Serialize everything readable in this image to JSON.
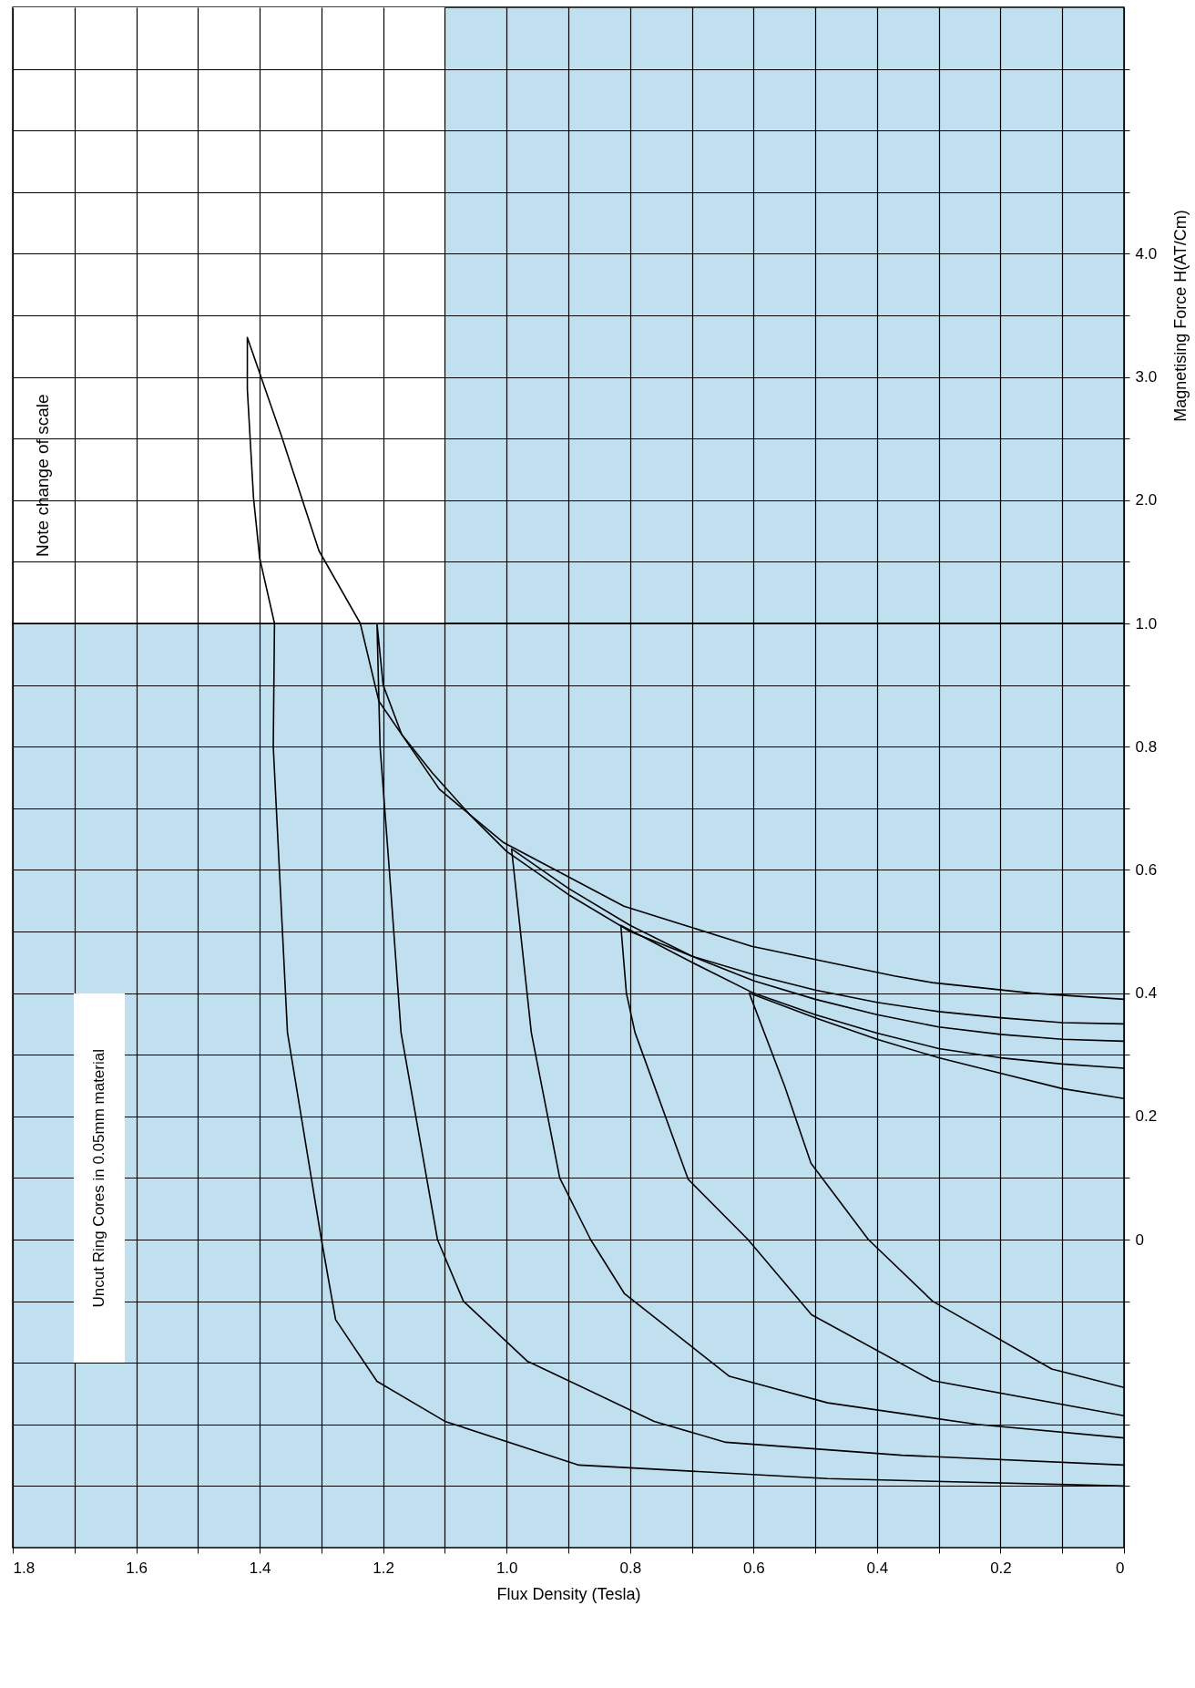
{
  "chart_data": [
    {
      "type": "line",
      "ylabel": "Magnetising Force H(AT/Cm)",
      "xlim": [
        1.8,
        0
      ],
      "xticks": [
        0,
        0.1,
        0.2,
        0.3,
        0.4,
        0.5,
        0.6,
        0.7,
        0.8,
        0.9,
        1,
        1.1,
        1.2,
        1.3,
        1.4,
        1.5,
        1.6,
        1.7,
        1.8
      ],
      "ylim": [
        1,
        6
      ],
      "yticks": [
        {
          "value": 1.5,
          "label": null
        },
        {
          "value": 2,
          "label": "2.0"
        },
        {
          "value": 2.5,
          "label": null
        },
        {
          "value": 3,
          "label": "3.0"
        },
        {
          "value": 3.5,
          "label": null
        },
        {
          "value": 4,
          "label": "4.0"
        },
        {
          "value": 4.5,
          "label": null
        },
        {
          "value": 5,
          "label": null
        },
        {
          "value": 5.5,
          "label": null
        }
      ],
      "tick_labels": "y",
      "grid": true,
      "bands": [
        {
          "axis": "x",
          "from": 1.1,
          "to": 1.8,
          "label": "Note change of scale",
          "color": "#ffffff"
        }
      ],
      "series": [
        {
          "color": "#000000",
          "x": [
            1.237,
            1.304,
            1.364,
            1.42,
            1.42,
            1.41,
            1.4,
            1.376
          ],
          "values": [
            1,
            1.59,
            2.51,
            3.32,
            2.9,
            2.02,
            1.53,
            1
          ]
        }
      ]
    },
    {
      "type": "line",
      "xlabel": "Flux Density (Tesla)",
      "xlim": [
        1.8,
        0
      ],
      "xticks": [
        0,
        {
          "value": 0.1,
          "label": null
        },
        0.2,
        {
          "value": 0.3,
          "label": null
        },
        0.4,
        {
          "value": 0.5,
          "label": null
        },
        0.6,
        {
          "value": 0.7,
          "label": null
        },
        0.8,
        {
          "value": 0.9,
          "label": null
        },
        {
          "value": 1,
          "label": "1.0"
        },
        {
          "value": 1.1,
          "label": null
        },
        1.2,
        {
          "value": 1.3,
          "label": null
        },
        1.4,
        {
          "value": 1.5,
          "label": null
        },
        1.6,
        {
          "value": 1.7,
          "label": null
        },
        1.8
      ],
      "ylim": [
        -0.5,
        1
      ],
      "yticks": [
        {
          "value": -0.4,
          "label": null
        },
        {
          "value": -0.3,
          "label": null
        },
        {
          "value": -0.2,
          "label": null
        },
        {
          "value": -0.1,
          "label": null
        },
        0,
        {
          "value": 0.1,
          "label": null
        },
        0.2,
        {
          "value": 0.3,
          "label": null
        },
        0.4,
        {
          "value": 0.5,
          "label": null
        },
        0.6,
        {
          "value": 0.7,
          "label": null
        },
        0.8,
        {
          "value": 0.9,
          "label": null
        },
        {
          "value": 1,
          "label": "1.0"
        }
      ],
      "grid": true,
      "annotations": [
        "Uncut Ring Cores in 0.05mm material"
      ],
      "series": [
        {
          "color": "#000000",
          "x": [
            0,
            0.15,
            0.31,
            0.372,
            0.603,
            0.81,
            1.006,
            1.109,
            1.207,
            1.237,
            1.376,
            1.378,
            1.355,
            1.3,
            1.277,
            1.21,
            1.1,
            0.883,
            0.48,
            0
          ],
          "values": [
            0.39,
            0.4,
            0.417,
            0.428,
            0.476,
            0.541,
            0.645,
            0.731,
            0.874,
            1,
            1,
            0.8,
            0.336,
            0,
            -0.13,
            -0.23,
            -0.295,
            -0.366,
            -0.388,
            -0.4
          ]
        },
        {
          "color": "#000000",
          "x": [
            0,
            0.1,
            0.2,
            0.3,
            0.4,
            0.5,
            0.6,
            0.7,
            0.8,
            0.9,
            1,
            1.06,
            1.12,
            1.17,
            1.2,
            1.21,
            1.205,
            1.19,
            1.171,
            1.112,
            1.07,
            0.967,
            0.761,
            0.645,
            0.36,
            0
          ],
          "values": [
            0.35,
            0.352,
            0.36,
            0.37,
            0.385,
            0.405,
            0.43,
            0.46,
            0.5,
            0.56,
            0.63,
            0.69,
            0.757,
            0.82,
            0.9,
            1,
            0.8,
            0.6,
            0.336,
            0,
            -0.1,
            -0.197,
            -0.295,
            -0.329,
            -0.35,
            -0.366
          ]
        },
        {
          "color": "#000000",
          "x": [
            0,
            0.1,
            0.2,
            0.3,
            0.4,
            0.5,
            0.6,
            0.7,
            0.8,
            0.9,
            0.992,
            0.96,
            0.914,
            0.864,
            0.809,
            0.639,
            0.48,
            0.238,
            0
          ],
          "values": [
            0.322,
            0.325,
            0.333,
            0.345,
            0.365,
            0.39,
            0.42,
            0.46,
            0.51,
            0.57,
            0.634,
            0.336,
            0.1,
            0,
            -0.088,
            -0.222,
            -0.265,
            -0.3,
            -0.322
          ]
        },
        {
          "color": "#000000",
          "x": [
            0,
            0.1,
            0.2,
            0.3,
            0.4,
            0.5,
            0.6,
            0.7,
            0.815,
            0.806,
            0.792,
            0.706,
            0.609,
            0.506,
            0.31,
            0
          ],
          "values": [
            0.278,
            0.285,
            0.295,
            0.31,
            0.335,
            0.365,
            0.4,
            0.45,
            0.51,
            0.4,
            0.336,
            0.098,
            0,
            -0.122,
            -0.229,
            -0.286
          ]
        },
        {
          "color": "#000000",
          "x": [
            0,
            0.1,
            0.2,
            0.3,
            0.4,
            0.5,
            0.607,
            0.55,
            0.507,
            0.414,
            0.31,
            0.117,
            0
          ],
          "values": [
            0.229,
            0.245,
            0.27,
            0.295,
            0.325,
            0.36,
            0.4,
            0.25,
            0.124,
            0,
            -0.1,
            -0.21,
            -0.24
          ]
        }
      ]
    }
  ]
}
